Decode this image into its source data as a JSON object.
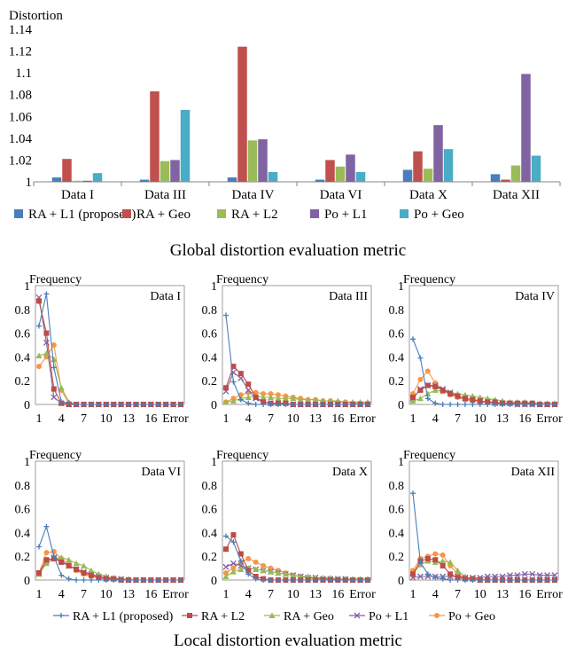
{
  "global_caption": "Global distortion evaluation metric",
  "local_caption": "Local distortion evaluation metric",
  "colors": {
    "ra_l1": "#4a7ebb",
    "ra_geo_global": "#c0504d",
    "ra_l2_global": "#9bbb59",
    "po_l1": "#8064a2",
    "po_geo_global": "#4bacc6",
    "ra_l2_local": "#be4b48",
    "ra_geo_local": "#98b954",
    "po_geo_local": "#f79646"
  },
  "chart_data": [
    {
      "type": "bar",
      "ylabel": "Distortion",
      "ylim": [
        1,
        1.14
      ],
      "yticks": [
        "1",
        "1.02",
        "1.04",
        "1.06",
        "1.08",
        "1.1",
        "1.12",
        "1.14"
      ],
      "categories": [
        "Data I",
        "Data III",
        "Data IV",
        "Data VI",
        "Data X",
        "Data XII"
      ],
      "legend_position": "bottom",
      "series": [
        {
          "name": "RA + L1 (proposed)",
          "color": "#4a7ebb",
          "values": [
            1.004,
            1.002,
            1.004,
            1.002,
            1.011,
            1.007
          ]
        },
        {
          "name": "RA + Geo",
          "color": "#c0504d",
          "values": [
            1.021,
            1.083,
            1.124,
            1.02,
            1.028,
            1.002
          ]
        },
        {
          "name": "RA + L2",
          "color": "#9bbb59",
          "values": [
            1.001,
            1.019,
            1.038,
            1.014,
            1.012,
            1.015
          ]
        },
        {
          "name": "Po + L1",
          "color": "#8064a2",
          "values": [
            1.001,
            1.02,
            1.039,
            1.025,
            1.052,
            1.099
          ]
        },
        {
          "name": "Po + Geo",
          "color": "#4bacc6",
          "values": [
            1.008,
            1.066,
            1.009,
            1.009,
            1.03,
            1.024
          ]
        }
      ]
    },
    {
      "type": "line",
      "grid": "small-multiples",
      "ylabel": "Frequency",
      "ylim": [
        0,
        1
      ],
      "yticks": [
        "0",
        "0.2",
        "0.4",
        "0.6",
        "0.8",
        "1"
      ],
      "xticks": [
        "1",
        "4",
        "7",
        "10",
        "13",
        "16",
        "Error"
      ],
      "legend_position": "bottom",
      "series_names": [
        "RA + L1 (proposed)",
        "RA + L2",
        "RA + Geo",
        "Po + L1",
        "Po + Geo"
      ],
      "series_colors": [
        "#4a7ebb",
        "#be4b48",
        "#98b954",
        "#8064a2",
        "#f79646"
      ],
      "series_markers": [
        "plus",
        "square",
        "triangle",
        "cross",
        "circle"
      ],
      "panels": [
        {
          "title": "Data I",
          "series": [
            [
              0.66,
              0.93,
              0.31,
              0.02,
              0.01,
              0,
              0,
              0,
              0,
              0,
              0,
              0,
              0,
              0,
              0,
              0,
              0,
              0,
              0,
              0
            ],
            [
              0.87,
              0.6,
              0.13,
              0.01,
              0,
              0,
              0,
              0,
              0,
              0,
              0,
              0,
              0,
              0,
              0,
              0,
              0,
              0,
              0,
              0
            ],
            [
              0.41,
              0.43,
              0.38,
              0.14,
              0.02,
              0,
              0,
              0,
              0,
              0,
              0,
              0,
              0,
              0,
              0,
              0,
              0,
              0,
              0,
              0
            ],
            [
              0.9,
              0.52,
              0.06,
              0.01,
              0,
              0,
              0,
              0,
              0,
              0,
              0,
              0,
              0,
              0,
              0,
              0,
              0,
              0,
              0,
              0
            ],
            [
              0.32,
              0.4,
              0.5,
              0.12,
              0.01,
              0,
              0,
              0,
              0,
              0,
              0,
              0,
              0,
              0,
              0,
              0,
              0,
              0,
              0,
              0
            ]
          ]
        },
        {
          "title": "Data III",
          "series": [
            [
              0.75,
              0.19,
              0.04,
              0.01,
              0,
              0,
              0,
              0,
              0,
              0,
              0,
              0,
              0,
              0,
              0,
              0,
              0,
              0,
              0,
              0
            ],
            [
              0.14,
              0.32,
              0.26,
              0.17,
              0.06,
              0.02,
              0.01,
              0.01,
              0.01,
              0,
              0,
              0,
              0,
              0,
              0,
              0,
              0,
              0,
              0,
              0
            ],
            [
              0.02,
              0.03,
              0.05,
              0.06,
              0.07,
              0.06,
              0.06,
              0.05,
              0.05,
              0.05,
              0.04,
              0.04,
              0.04,
              0.03,
              0.03,
              0.03,
              0.02,
              0.02,
              0.02,
              0.02
            ],
            [
              0.11,
              0.27,
              0.22,
              0.12,
              0.05,
              0.02,
              0.01,
              0.01,
              0.01,
              0,
              0,
              0,
              0,
              0,
              0,
              0,
              0,
              0,
              0,
              0
            ],
            [
              0.02,
              0.05,
              0.08,
              0.1,
              0.1,
              0.09,
              0.09,
              0.08,
              0.07,
              0.06,
              0.05,
              0.04,
              0.04,
              0.03,
              0.03,
              0.02,
              0.02,
              0.01,
              0.01,
              0.01
            ]
          ]
        },
        {
          "title": "Data IV",
          "series": [
            [
              0.55,
              0.39,
              0.05,
              0.01,
              0,
              0,
              0,
              0,
              0,
              0,
              0,
              0,
              0,
              0,
              0,
              0,
              0,
              0,
              0,
              0
            ],
            [
              0.06,
              0.12,
              0.16,
              0.15,
              0.12,
              0.09,
              0.07,
              0.05,
              0.04,
              0.03,
              0.02,
              0.02,
              0.01,
              0.01,
              0.01,
              0.01,
              0.01,
              0,
              0,
              0
            ],
            [
              0.03,
              0.05,
              0.09,
              0.12,
              0.11,
              0.1,
              0.09,
              0.08,
              0.07,
              0.06,
              0.05,
              0.04,
              0.03,
              0.02,
              0.02,
              0.02,
              0.01,
              0.01,
              0.01,
              0.01
            ],
            [
              0.05,
              0.13,
              0.16,
              0.16,
              0.13,
              0.1,
              0.07,
              0.05,
              0.04,
              0.03,
              0.02,
              0.01,
              0.01,
              0.01,
              0,
              0,
              0,
              0,
              0,
              0
            ],
            [
              0.09,
              0.21,
              0.28,
              0.18,
              0.12,
              0.08,
              0.06,
              0.04,
              0.03,
              0.02,
              0.02,
              0.01,
              0.01,
              0.01,
              0,
              0,
              0,
              0,
              0,
              0
            ]
          ]
        },
        {
          "title": "Data VI",
          "series": [
            [
              0.28,
              0.45,
              0.2,
              0.04,
              0.01,
              0,
              0,
              0,
              0,
              0,
              0,
              0,
              0,
              0,
              0,
              0,
              0,
              0,
              0,
              0
            ],
            [
              0.06,
              0.17,
              0.18,
              0.15,
              0.12,
              0.09,
              0.06,
              0.04,
              0.02,
              0.01,
              0.01,
              0,
              0,
              0,
              0,
              0,
              0,
              0,
              0,
              0
            ],
            [
              0.05,
              0.14,
              0.18,
              0.19,
              0.17,
              0.14,
              0.12,
              0.08,
              0.05,
              0.03,
              0.02,
              0.01,
              0.01,
              0,
              0,
              0,
              0,
              0,
              0,
              0
            ],
            [
              0.05,
              0.16,
              0.19,
              0.16,
              0.12,
              0.09,
              0.07,
              0.05,
              0.03,
              0.02,
              0.01,
              0.01,
              0,
              0,
              0,
              0,
              0,
              0,
              0,
              0
            ],
            [
              0.06,
              0.23,
              0.24,
              0.18,
              0.13,
              0.08,
              0.05,
              0.03,
              0.02,
              0.01,
              0.01,
              0,
              0,
              0,
              0,
              0,
              0,
              0,
              0,
              0
            ]
          ]
        },
        {
          "title": "Data X",
          "series": [
            [
              0.37,
              0.32,
              0.16,
              0.05,
              0.01,
              0,
              0,
              0,
              0,
              0,
              0,
              0,
              0,
              0,
              0,
              0,
              0,
              0,
              0,
              0
            ],
            [
              0.26,
              0.38,
              0.22,
              0.08,
              0.03,
              0.01,
              0,
              0,
              0,
              0,
              0,
              0,
              0,
              0,
              0,
              0,
              0,
              0,
              0,
              0
            ],
            [
              0.03,
              0.07,
              0.09,
              0.1,
              0.09,
              0.08,
              0.07,
              0.06,
              0.05,
              0.04,
              0.03,
              0.03,
              0.02,
              0.02,
              0.02,
              0.01,
              0.01,
              0.01,
              0.01,
              0.01
            ],
            [
              0.11,
              0.14,
              0.12,
              0.1,
              0.09,
              0.08,
              0.07,
              0.06,
              0.05,
              0.04,
              0.03,
              0.02,
              0.02,
              0.01,
              0.01,
              0.01,
              0.01,
              0,
              0,
              0
            ],
            [
              0.06,
              0.1,
              0.15,
              0.18,
              0.15,
              0.12,
              0.1,
              0.08,
              0.06,
              0.04,
              0.03,
              0.02,
              0.01,
              0.01,
              0.01,
              0,
              0,
              0,
              0,
              0
            ]
          ]
        },
        {
          "title": "Data XII",
          "series": [
            [
              0.73,
              0.15,
              0.05,
              0.02,
              0.01,
              0,
              0,
              0,
              0,
              0,
              0,
              0,
              0,
              0,
              0,
              0,
              0,
              0,
              0,
              0
            ],
            [
              0.05,
              0.16,
              0.18,
              0.17,
              0.12,
              0.05,
              0.02,
              0.01,
              0.01,
              0,
              0,
              0,
              0,
              0,
              0,
              0,
              0,
              0,
              0,
              0
            ],
            [
              0.05,
              0.13,
              0.16,
              0.15,
              0.16,
              0.15,
              0.08,
              0.03,
              0.01,
              0,
              0,
              0,
              0,
              0,
              0,
              0,
              0,
              0,
              0,
              0
            ],
            [
              0.02,
              0.03,
              0.03,
              0.03,
              0.03,
              0.03,
              0.03,
              0.02,
              0.02,
              0.02,
              0.03,
              0.03,
              0.03,
              0.04,
              0.04,
              0.05,
              0.05,
              0.04,
              0.04,
              0.04
            ],
            [
              0.08,
              0.18,
              0.2,
              0.22,
              0.21,
              0.12,
              0.05,
              0.02,
              0.01,
              0.01,
              0,
              0,
              0,
              0,
              0,
              0,
              0,
              0,
              0,
              0
            ]
          ]
        }
      ]
    }
  ]
}
